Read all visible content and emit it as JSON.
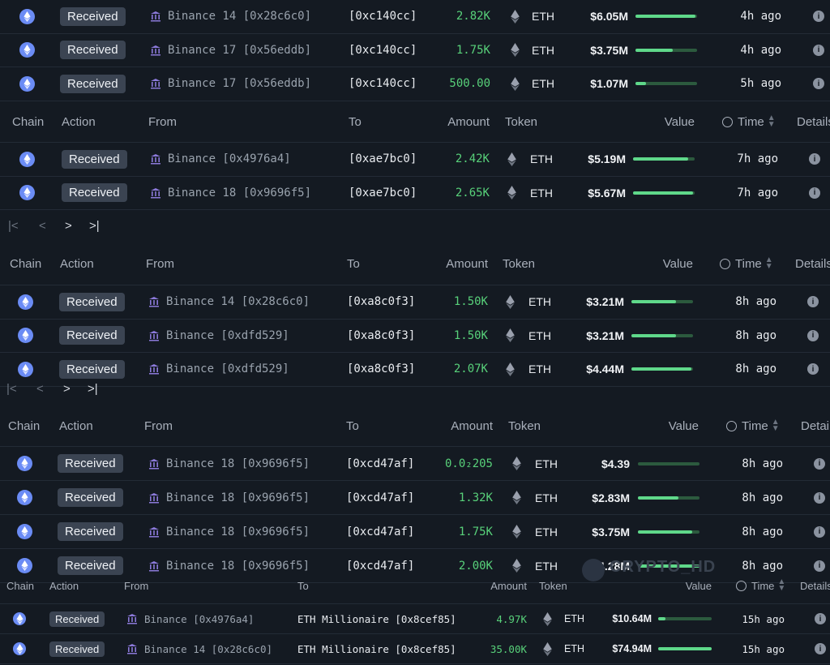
{
  "headers": {
    "chain": "Chain",
    "action": "Action",
    "from": "From",
    "to": "To",
    "amount": "Amount",
    "token": "Token",
    "value": "Value",
    "time": "Time",
    "details": "Details"
  },
  "pager": {
    "first": "|<",
    "prev": "<",
    "next": ">",
    "last": ">|"
  },
  "watermark": "CRYPTO_HD",
  "colors": {
    "background": "#141a22",
    "amount_green": "#58d17a",
    "bar_fill": "#5fd88a",
    "chain_icon": "#6b8cf5",
    "badge": "#3b4452"
  },
  "segments": [
    {
      "rows": [
        {
          "action": "Received",
          "from": "Binance 14 [0x28c6c0]",
          "to": "[0xc140cc]",
          "amount": "2.82K",
          "token": "ETH",
          "value": "$6.05M",
          "bar": 0.98,
          "time": "4h ago"
        },
        {
          "action": "Received",
          "from": "Binance 17 [0x56eddb]",
          "to": "[0xc140cc]",
          "amount": "1.75K",
          "token": "ETH",
          "value": "$3.75M",
          "bar": 0.6,
          "time": "4h ago"
        },
        {
          "action": "Received",
          "from": "Binance 17 [0x56eddb]",
          "to": "[0xc140cc]",
          "amount": "500.00",
          "token": "ETH",
          "value": "$1.07M",
          "bar": 0.17,
          "time": "5h ago"
        }
      ]
    },
    {
      "rows": [
        {
          "action": "Received",
          "from": "Binance [0x4976a4]",
          "to": "[0xae7bc0]",
          "amount": "2.42K",
          "token": "ETH",
          "value": "$5.19M",
          "bar": 0.9,
          "time": "7h ago"
        },
        {
          "action": "Received",
          "from": "Binance 18 [0x9696f5]",
          "to": "[0xae7bc0]",
          "amount": "2.65K",
          "token": "ETH",
          "value": "$5.67M",
          "bar": 0.98,
          "time": "7h ago"
        }
      ]
    },
    {
      "rows": [
        {
          "action": "Received",
          "from": "Binance 14 [0x28c6c0]",
          "to": "[0xa8c0f3]",
          "amount": "1.50K",
          "token": "ETH",
          "value": "$3.21M",
          "bar": 0.72,
          "time": "8h ago"
        },
        {
          "action": "Received",
          "from": "Binance [0xdfd529]",
          "to": "[0xa8c0f3]",
          "amount": "1.50K",
          "token": "ETH",
          "value": "$3.21M",
          "bar": 0.72,
          "time": "8h ago"
        },
        {
          "action": "Received",
          "from": "Binance [0xdfd529]",
          "to": "[0xa8c0f3]",
          "amount": "2.07K",
          "token": "ETH",
          "value": "$4.44M",
          "bar": 0.98,
          "time": "8h ago"
        }
      ]
    },
    {
      "rows": [
        {
          "action": "Received",
          "from": "Binance 18 [0x9696f5]",
          "to": "[0xcd47af]",
          "amount": "0.0₂205",
          "token": "ETH",
          "value": "$4.39",
          "bar": 0.0,
          "time": "8h ago"
        },
        {
          "action": "Received",
          "from": "Binance 18 [0x9696f5]",
          "to": "[0xcd47af]",
          "amount": "1.32K",
          "token": "ETH",
          "value": "$2.83M",
          "bar": 0.66,
          "time": "8h ago"
        },
        {
          "action": "Received",
          "from": "Binance 18 [0x9696f5]",
          "to": "[0xcd47af]",
          "amount": "1.75K",
          "token": "ETH",
          "value": "$3.75M",
          "bar": 0.88,
          "time": "8h ago"
        },
        {
          "action": "Received",
          "from": "Binance 18 [0x9696f5]",
          "to": "[0xcd47af]",
          "amount": "2.00K",
          "token": "ETH",
          "value": "$4.28M",
          "bar": 1.0,
          "time": "8h ago"
        }
      ]
    },
    {
      "rows": [
        {
          "action": "Received",
          "from": "Binance [0x4976a4]",
          "to": "ETH Millionaire [0x8cef85]",
          "amount": "4.97K",
          "token": "ETH",
          "value": "$10.64M",
          "bar": 0.14,
          "time": "15h ago"
        },
        {
          "action": "Received",
          "from": "Binance 14 [0x28c6c0]",
          "to": "ETH Millionaire [0x8cef85]",
          "amount": "35.00K",
          "token": "ETH",
          "value": "$74.94M",
          "bar": 1.0,
          "time": "15h ago"
        }
      ]
    }
  ]
}
